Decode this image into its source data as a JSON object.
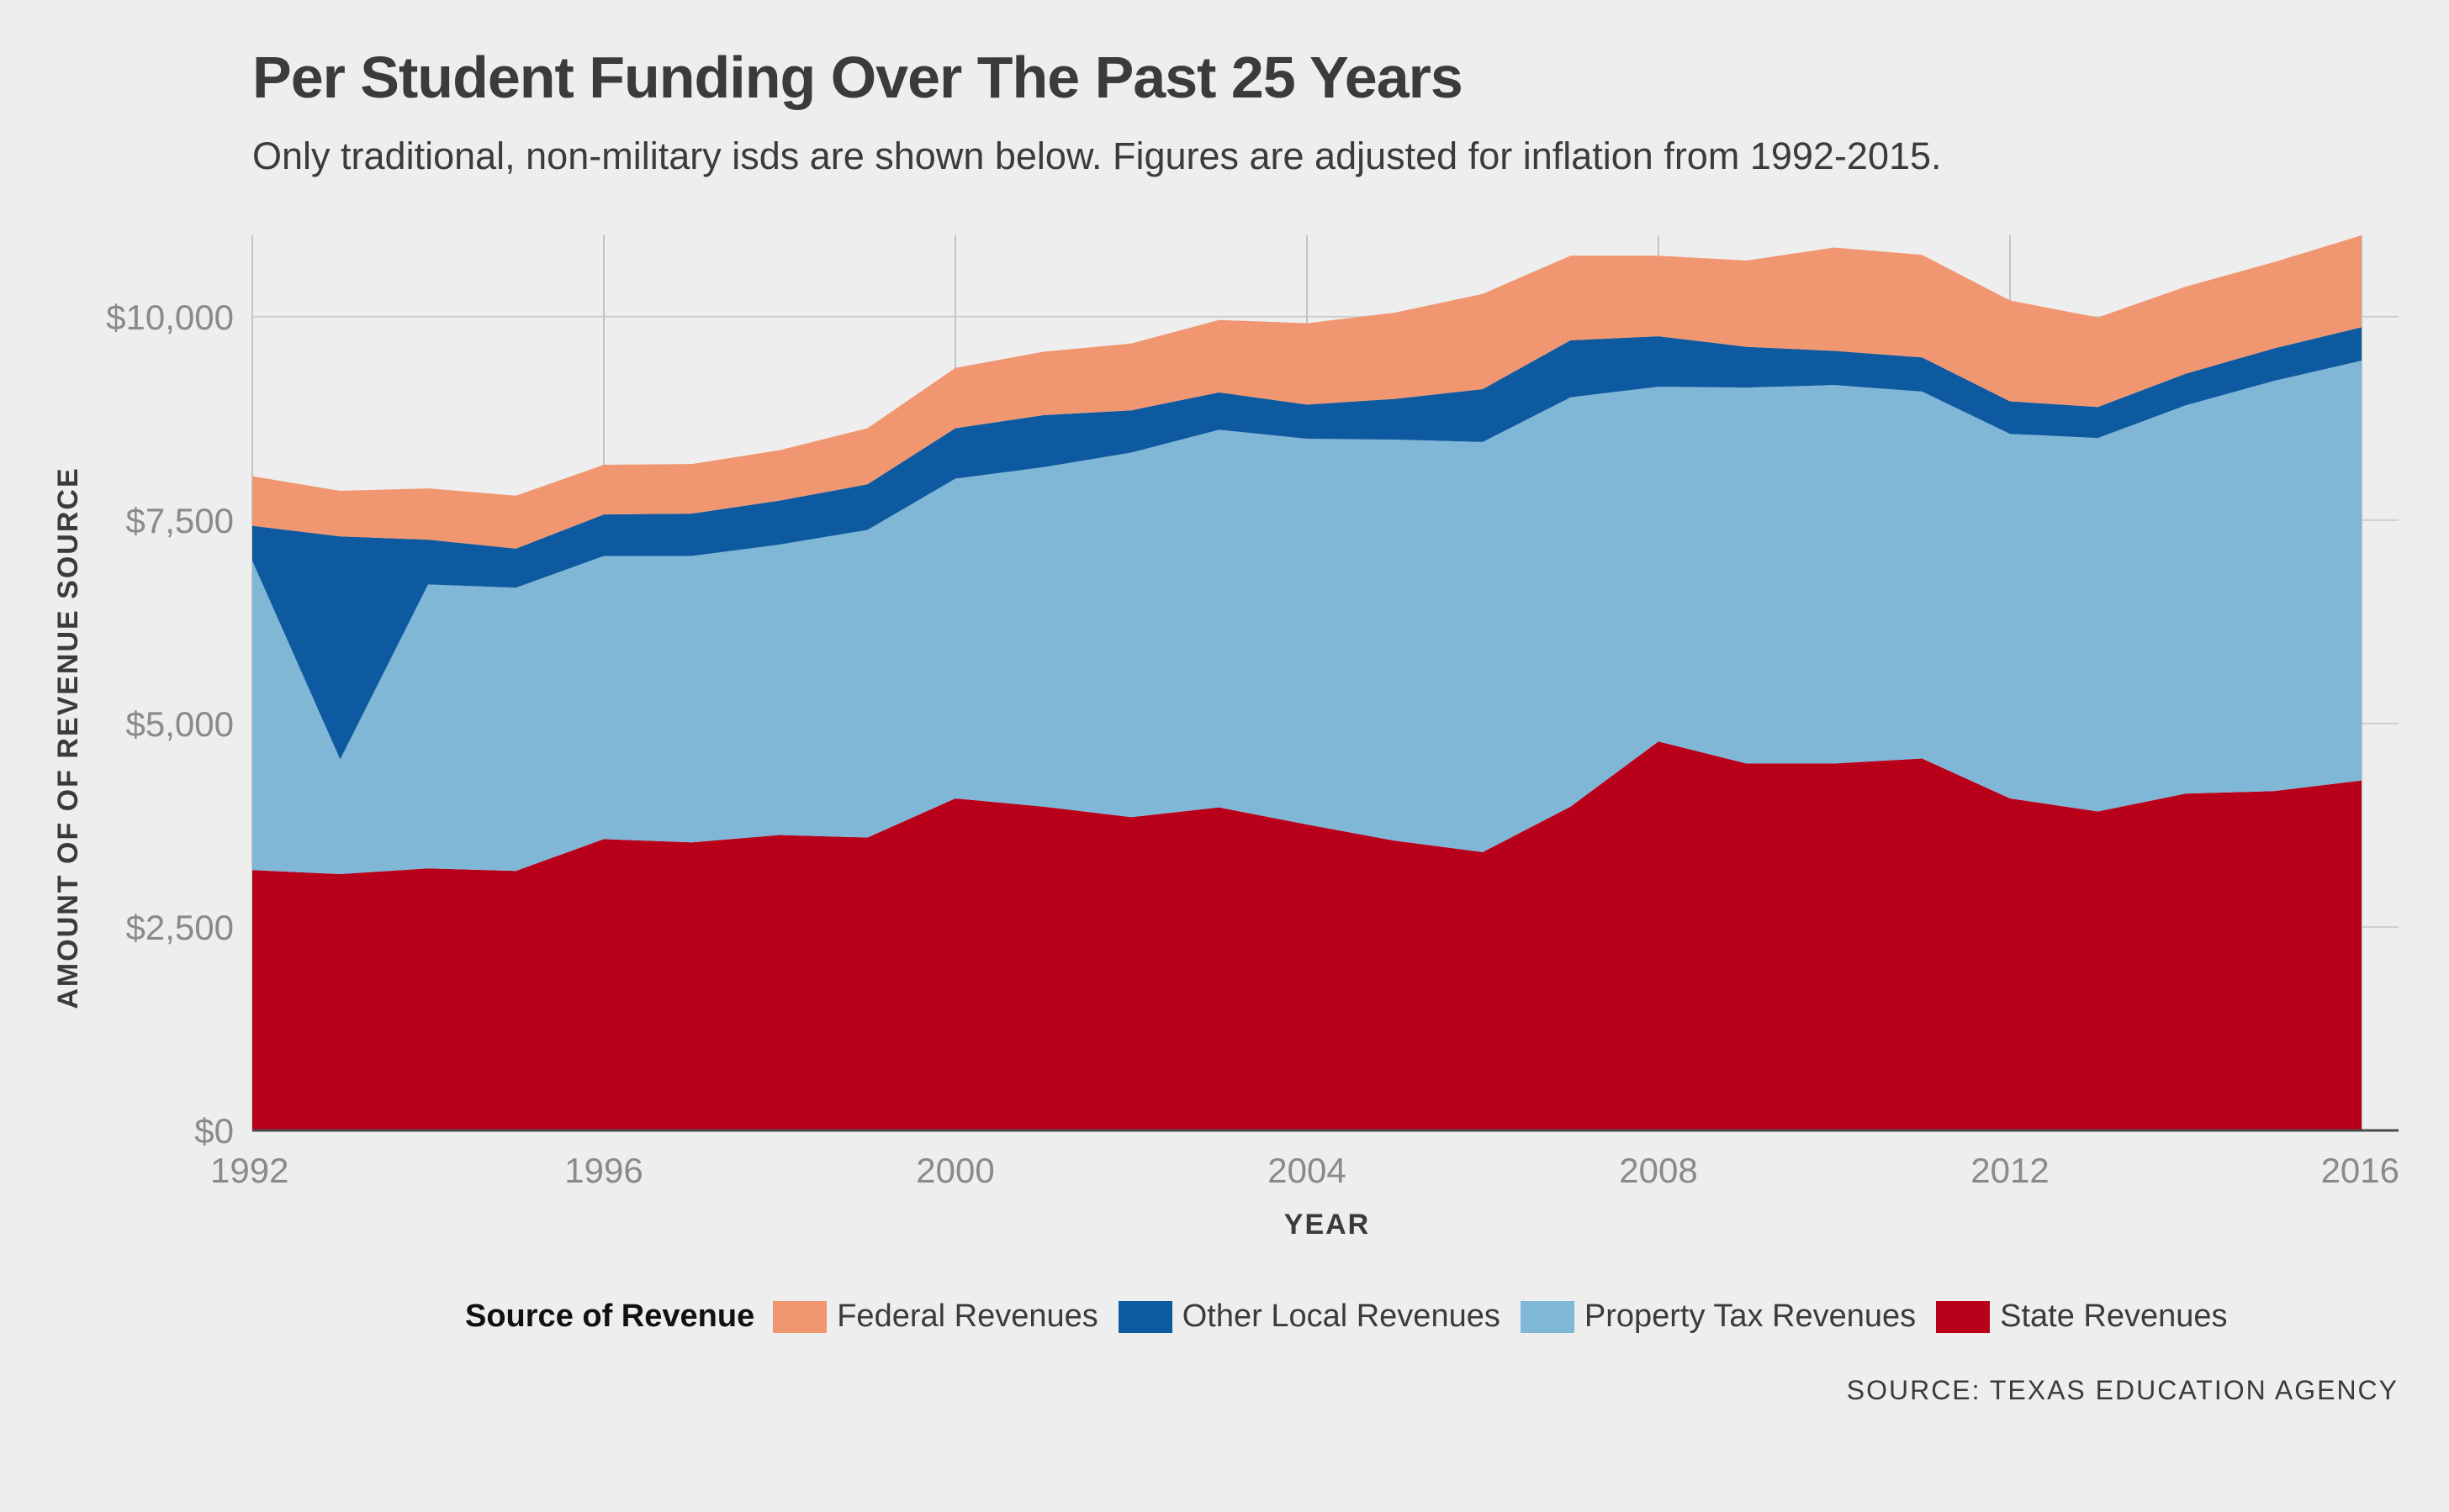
{
  "title": "Per Student Funding Over The Past 25 Years",
  "subtitle": "Only traditional, non-military isds are shown below. Figures are adjusted for inflation from 1992-2015.",
  "source": "SOURCE: TEXAS EDUCATION AGENCY",
  "legend": {
    "title": "Source of Revenue",
    "items": [
      {
        "label": "Federal Revenues",
        "color": "#f09670"
      },
      {
        "label": "Other Local Revenues",
        "color": "#0e5aa0"
      },
      {
        "label": "Property Tax Revenues",
        "color": "#80b6d6"
      },
      {
        "label": "State Revenues",
        "color": "#b8001b"
      }
    ]
  },
  "chart_data": {
    "type": "area",
    "stacked": true,
    "xlabel": "YEAR",
    "ylabel": "AMOUNT OF OF REVENUE SOURCE",
    "xlim": [
      1992,
      2016
    ],
    "ylim": [
      0,
      11000
    ],
    "x_ticks": [
      "1992",
      "1996",
      "2000",
      "2004",
      "2008",
      "2012",
      "2016"
    ],
    "y_ticks": [
      "$0",
      "$2,500",
      "$5,000",
      "$7,500",
      "$10,000"
    ],
    "x": [
      1992,
      1993,
      1994,
      1995,
      1996,
      1997,
      1998,
      1999,
      2000,
      2001,
      2002,
      2003,
      2004,
      2005,
      2006,
      2007,
      2008,
      2009,
      2010,
      2011,
      2012,
      2013,
      2014,
      2015,
      2016
    ],
    "series": [
      {
        "name": "State Revenues",
        "color": "#b8001b",
        "values": [
          3200,
          3150,
          3220,
          3190,
          3580,
          3540,
          3630,
          3600,
          4080,
          3980,
          3850,
          3970,
          3760,
          3560,
          3420,
          3980,
          4780,
          4510,
          4510,
          4570,
          4080,
          3920,
          4140,
          4170,
          4300
        ]
      },
      {
        "name": "Property Tax Revenues",
        "color": "#80b6d6",
        "values": [
          3800,
          1410,
          3490,
          3480,
          3480,
          3520,
          3570,
          3780,
          3930,
          4170,
          4480,
          4640,
          4740,
          4930,
          5040,
          5030,
          4360,
          4620,
          4650,
          4510,
          4480,
          4590,
          4770,
          5040,
          5160
        ]
      },
      {
        "name": "Other Local Revenues",
        "color": "#0e5aa0",
        "values": [
          430,
          2740,
          550,
          480,
          510,
          520,
          540,
          560,
          620,
          640,
          520,
          460,
          420,
          500,
          650,
          700,
          620,
          500,
          420,
          420,
          400,
          380,
          390,
          400,
          410
        ]
      },
      {
        "name": "Federal Revenues",
        "color": "#f09670",
        "values": [
          610,
          560,
          630,
          650,
          610,
          610,
          620,
          690,
          740,
          780,
          820,
          890,
          1000,
          1060,
          1170,
          1040,
          990,
          1060,
          1270,
          1260,
          1240,
          1100,
          1070,
          1060,
          1130
        ]
      }
    ],
    "grid": true,
    "legend_position": "bottom"
  }
}
